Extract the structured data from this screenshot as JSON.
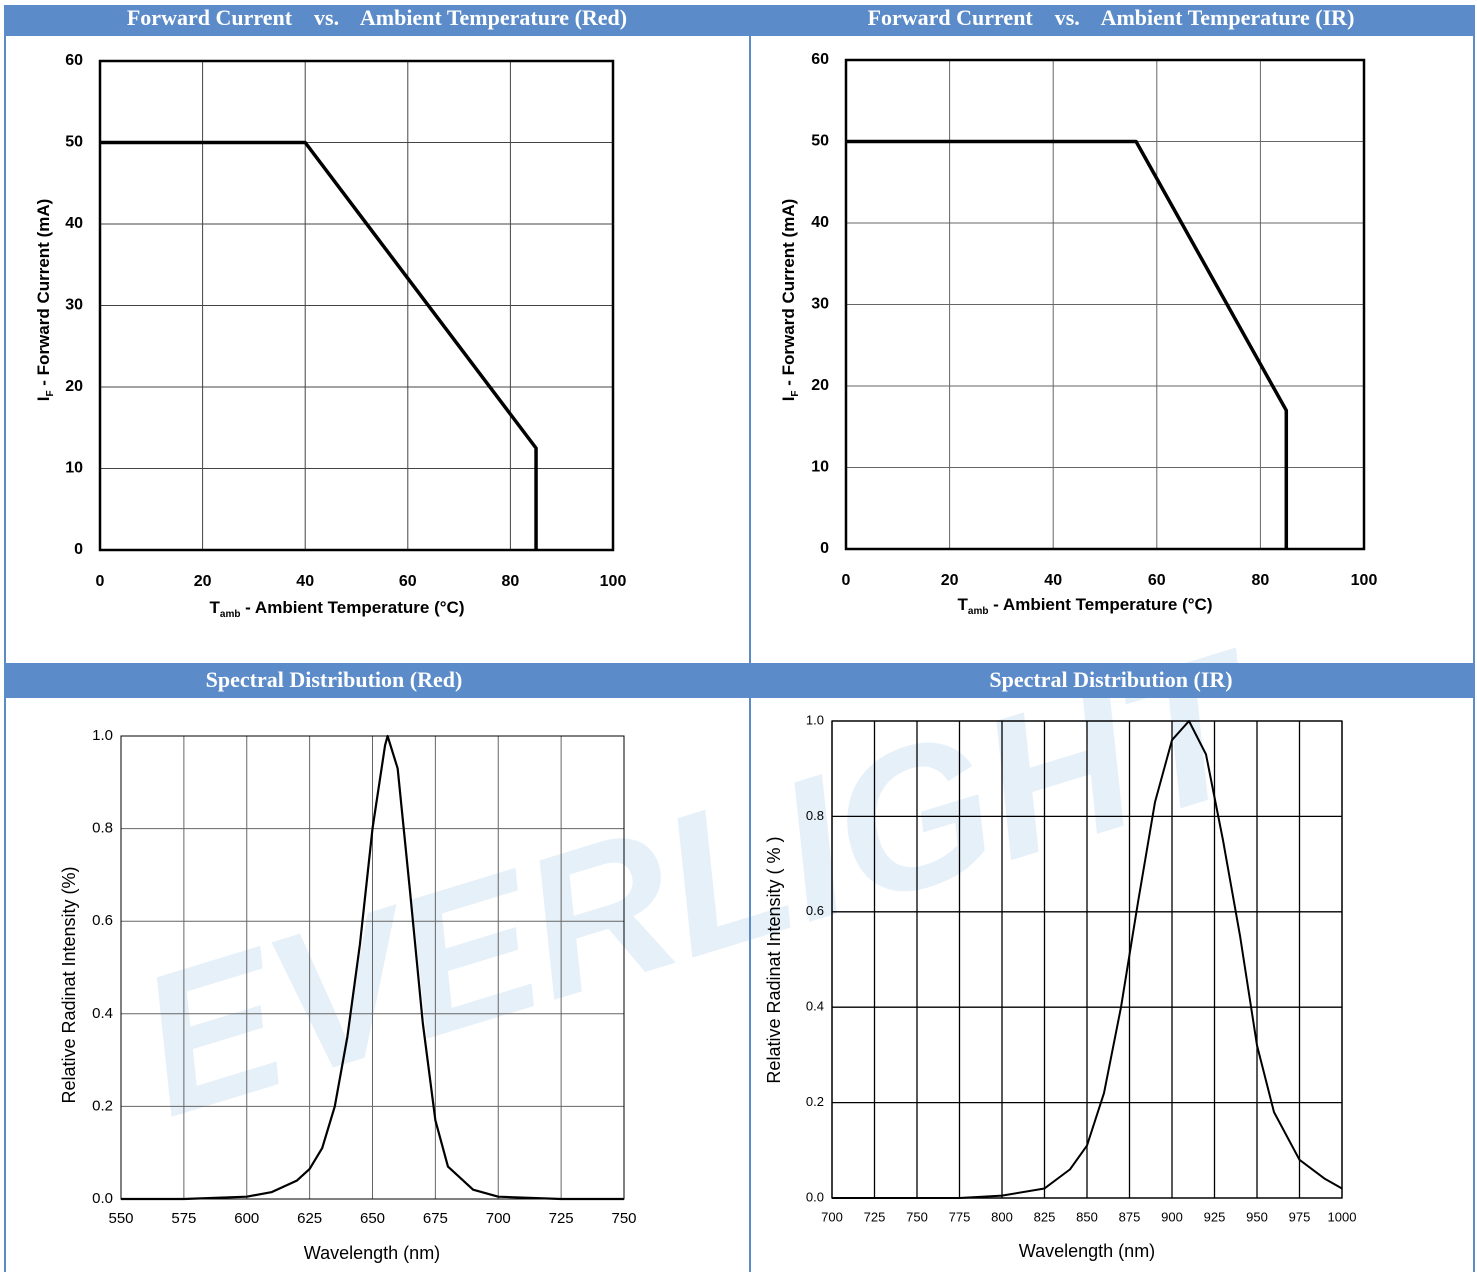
{
  "watermark": "EVERLIGHT",
  "chart_data": [
    {
      "type": "line",
      "title": "Forward Current    vs.    Ambient Temperature (Red)",
      "x_label_symbol": "T",
      "x_label_subscript": "amb",
      "x_label": " - Ambient Temperature (°C)",
      "y_label_symbol": "I",
      "y_label_subscript": "F",
      "y_label": " - Forward Current (mA)",
      "x": [
        0,
        40,
        85,
        85
      ],
      "values": [
        50,
        50,
        12.5,
        0
      ],
      "color": "#000000",
      "xlim": [
        0,
        100
      ],
      "xticks": [
        0,
        20,
        40,
        60,
        80,
        100
      ],
      "ylim": [
        0,
        60
      ],
      "yticks": [
        0,
        10,
        20,
        30,
        40,
        50,
        60
      ],
      "grid": true
    },
    {
      "type": "line",
      "title": "Forward Current    vs.    Ambient Temperature (IR)",
      "x_label_symbol": "T",
      "x_label_subscript": "amb",
      "x_label": " - Ambient Temperature (°C)",
      "y_label_symbol": "I",
      "y_label_subscript": "F",
      "y_label": " - Forward Current (mA)",
      "x": [
        0,
        56,
        85,
        85
      ],
      "values": [
        50,
        50,
        17,
        0
      ],
      "color": "#000000",
      "xlim": [
        0,
        100
      ],
      "xticks": [
        0,
        20,
        40,
        60,
        80,
        100
      ],
      "ylim": [
        0,
        60
      ],
      "yticks": [
        0,
        10,
        20,
        30,
        40,
        50,
        60
      ],
      "grid": true
    },
    {
      "type": "line",
      "title": "Spectral Distribution (Red)",
      "x_label": "Wavelength (nm)",
      "y_label": "Relative Radinat Intensity (%)",
      "x": [
        550,
        575,
        600,
        610,
        620,
        625,
        630,
        635,
        640,
        645,
        650,
        655,
        656,
        660,
        665,
        670,
        675,
        680,
        690,
        700,
        725,
        750
      ],
      "values": [
        0,
        0,
        0.005,
        0.015,
        0.04,
        0.065,
        0.11,
        0.2,
        0.35,
        0.55,
        0.8,
        0.98,
        1.0,
        0.93,
        0.66,
        0.38,
        0.17,
        0.07,
        0.02,
        0.005,
        0,
        0
      ],
      "color": "#000000",
      "xlim": [
        550,
        750
      ],
      "xticks": [
        550,
        575,
        600,
        625,
        650,
        675,
        700,
        725,
        750
      ],
      "ylim": [
        0,
        1
      ],
      "yticks": [
        {
          "value": 0,
          "label": "0.0"
        },
        0.2,
        0.4,
        0.6,
        0.8,
        {
          "value": 1,
          "label": "1.0"
        }
      ],
      "grid": true
    },
    {
      "type": "line",
      "title": "Spectral Distribution (IR)",
      "x_label": "Wavelength (nm)",
      "y_label": "Relative Radinat Intensity ( % )",
      "x": [
        700,
        775,
        800,
        825,
        840,
        850,
        860,
        870,
        880,
        890,
        900,
        910,
        920,
        930,
        940,
        950,
        960,
        975,
        990,
        1000
      ],
      "values": [
        0,
        0,
        0.005,
        0.02,
        0.06,
        0.11,
        0.22,
        0.4,
        0.62,
        0.83,
        0.96,
        1.0,
        0.93,
        0.75,
        0.55,
        0.32,
        0.18,
        0.08,
        0.04,
        0.02
      ],
      "color": "#000000",
      "xlim": [
        700,
        1000
      ],
      "xticks": [
        700,
        725,
        750,
        775,
        800,
        825,
        850,
        875,
        900,
        925,
        950,
        975,
        1000
      ],
      "ylim": [
        0,
        1
      ],
      "yticks": [
        {
          "value": 0,
          "label": "0.0"
        },
        0.2,
        0.4,
        0.6,
        0.8,
        {
          "value": 1,
          "label": "1.0"
        }
      ],
      "grid": true
    }
  ]
}
